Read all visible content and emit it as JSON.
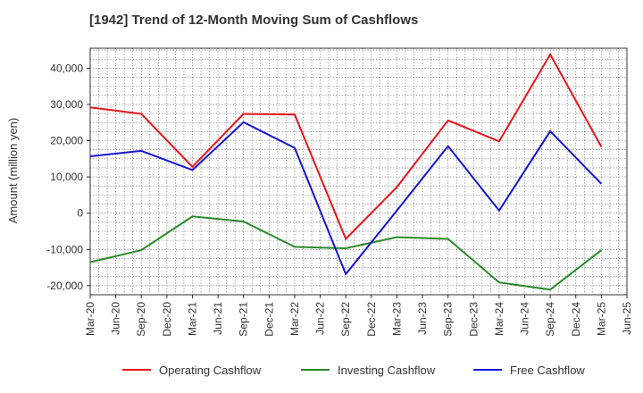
{
  "chart_data": {
    "type": "line",
    "title": "[1942]  Trend of 12-Month Moving Sum of Cashflows",
    "ylabel": "Amount (million yen)",
    "xlabel": "",
    "x_ticks": [
      "Mar-20",
      "Jun-20",
      "Sep-20",
      "Dec-20",
      "Mar-21",
      "Jun-21",
      "Sep-21",
      "Dec-21",
      "Mar-22",
      "Jun-22",
      "Sep-22",
      "Dec-22",
      "Mar-23",
      "Jun-23",
      "Sep-23",
      "Dec-23",
      "Mar-24",
      "Jun-24",
      "Sep-24",
      "Dec-24",
      "Mar-25",
      "Jun-25"
    ],
    "y_ticks": [
      -20000,
      -10000,
      0,
      10000,
      20000,
      30000,
      40000
    ],
    "y_tick_labels": [
      "-20,000",
      "-10,000",
      "0",
      "10,000",
      "20,000",
      "30,000",
      "40,000"
    ],
    "ylim": [
      -22500,
      45500
    ],
    "grid": true,
    "legend_position": "bottom",
    "series": [
      {
        "name": "Operating Cashflow",
        "color": "#e8141a",
        "x": [
          "Mar-20",
          "Sep-20",
          "Mar-21",
          "Sep-21",
          "Mar-22",
          "Sep-22",
          "Mar-23",
          "Sep-23",
          "Mar-24",
          "Sep-24",
          "Mar-25"
        ],
        "values": [
          29200,
          27400,
          12800,
          27400,
          27200,
          -7100,
          7200,
          25600,
          19800,
          43800,
          18300
        ]
      },
      {
        "name": "Investing Cashflow",
        "color": "#2a8a2a",
        "x": [
          "Mar-20",
          "Sep-20",
          "Mar-21",
          "Sep-21",
          "Mar-22",
          "Sep-22",
          "Mar-23",
          "Sep-23",
          "Mar-24",
          "Sep-24",
          "Mar-25"
        ],
        "values": [
          -13500,
          -10200,
          -900,
          -2300,
          -9300,
          -9700,
          -6600,
          -7100,
          -19100,
          -21100,
          -10200
        ]
      },
      {
        "name": "Free Cashflow",
        "color": "#1414d2",
        "x": [
          "Mar-20",
          "Sep-20",
          "Mar-21",
          "Sep-21",
          "Mar-22",
          "Sep-22",
          "Mar-23",
          "Sep-23",
          "Mar-24",
          "Sep-24",
          "Mar-25"
        ],
        "values": [
          15700,
          17200,
          11900,
          25100,
          18000,
          -16800,
          700,
          18500,
          700,
          22600,
          8100
        ]
      }
    ]
  }
}
